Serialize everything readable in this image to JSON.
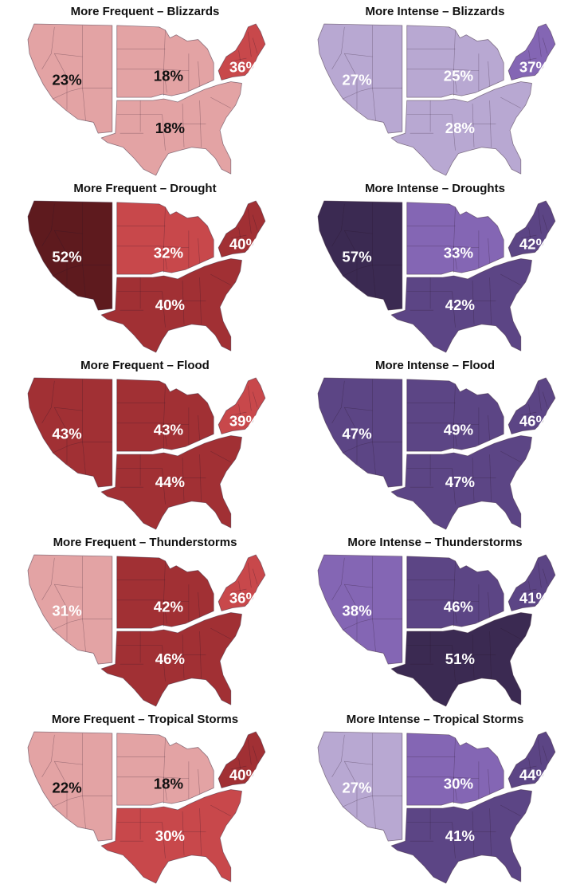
{
  "panels": [
    {
      "title": "More Frequent – Blizzards",
      "theme": "red",
      "regions": [
        {
          "name": "west",
          "value": "23%",
          "color": "#e3a3a4",
          "label_color": "#111111"
        },
        {
          "name": "midwest",
          "value": "18%",
          "color": "#e3a3a4",
          "label_color": "#111111"
        },
        {
          "name": "northeast",
          "value": "36%",
          "color": "#c8484b",
          "label_color": "#ffffff"
        },
        {
          "name": "south",
          "value": "18%",
          "color": "#e3a3a4",
          "label_color": "#111111"
        }
      ]
    },
    {
      "title": "More Intense – Blizzards",
      "theme": "purple",
      "regions": [
        {
          "name": "west",
          "value": "27%",
          "color": "#b8a8d2",
          "label_color": "#ffffff"
        },
        {
          "name": "midwest",
          "value": "25%",
          "color": "#b8a8d2",
          "label_color": "#ffffff"
        },
        {
          "name": "northeast",
          "value": "37%",
          "color": "#8466b4",
          "label_color": "#ffffff"
        },
        {
          "name": "south",
          "value": "28%",
          "color": "#b8a8d2",
          "label_color": "#ffffff"
        }
      ]
    },
    {
      "title": "More Frequent – Drought",
      "theme": "red",
      "regions": [
        {
          "name": "west",
          "value": "52%",
          "color": "#5e1a1e",
          "label_color": "#ffffff"
        },
        {
          "name": "midwest",
          "value": "32%",
          "color": "#c8484b",
          "label_color": "#ffffff"
        },
        {
          "name": "northeast",
          "value": "40%",
          "color": "#a13034",
          "label_color": "#ffffff"
        },
        {
          "name": "south",
          "value": "40%",
          "color": "#a13034",
          "label_color": "#ffffff"
        }
      ]
    },
    {
      "title": "More Intense – Droughts",
      "theme": "purple",
      "regions": [
        {
          "name": "west",
          "value": "57%",
          "color": "#3b2a52",
          "label_color": "#ffffff"
        },
        {
          "name": "midwest",
          "value": "33%",
          "color": "#8466b4",
          "label_color": "#ffffff"
        },
        {
          "name": "northeast",
          "value": "42%",
          "color": "#5c4585",
          "label_color": "#ffffff"
        },
        {
          "name": "south",
          "value": "42%",
          "color": "#5c4585",
          "label_color": "#ffffff"
        }
      ]
    },
    {
      "title": "More Frequent – Flood",
      "theme": "red",
      "regions": [
        {
          "name": "west",
          "value": "43%",
          "color": "#a13034",
          "label_color": "#ffffff"
        },
        {
          "name": "midwest",
          "value": "43%",
          "color": "#a13034",
          "label_color": "#ffffff"
        },
        {
          "name": "northeast",
          "value": "39%",
          "color": "#c8484b",
          "label_color": "#ffffff"
        },
        {
          "name": "south",
          "value": "44%",
          "color": "#a13034",
          "label_color": "#ffffff"
        }
      ]
    },
    {
      "title": "More Intense – Flood",
      "theme": "purple",
      "regions": [
        {
          "name": "west",
          "value": "47%",
          "color": "#5c4585",
          "label_color": "#ffffff"
        },
        {
          "name": "midwest",
          "value": "49%",
          "color": "#5c4585",
          "label_color": "#ffffff"
        },
        {
          "name": "northeast",
          "value": "46%",
          "color": "#5c4585",
          "label_color": "#ffffff"
        },
        {
          "name": "south",
          "value": "47%",
          "color": "#5c4585",
          "label_color": "#ffffff"
        }
      ]
    },
    {
      "title": "More Frequent – Thunderstorms",
      "theme": "red",
      "regions": [
        {
          "name": "west",
          "value": "31%",
          "color": "#e3a3a4",
          "label_color": "#ffffff"
        },
        {
          "name": "midwest",
          "value": "42%",
          "color": "#a13034",
          "label_color": "#ffffff"
        },
        {
          "name": "northeast",
          "value": "36%",
          "color": "#c8484b",
          "label_color": "#ffffff"
        },
        {
          "name": "south",
          "value": "46%",
          "color": "#a13034",
          "label_color": "#ffffff"
        }
      ]
    },
    {
      "title": "More Intense – Thunderstorms",
      "theme": "purple",
      "regions": [
        {
          "name": "west",
          "value": "38%",
          "color": "#8466b4",
          "label_color": "#ffffff"
        },
        {
          "name": "midwest",
          "value": "46%",
          "color": "#5c4585",
          "label_color": "#ffffff"
        },
        {
          "name": "northeast",
          "value": "41%",
          "color": "#5c4585",
          "label_color": "#ffffff"
        },
        {
          "name": "south",
          "value": "51%",
          "color": "#3b2a52",
          "label_color": "#ffffff"
        }
      ]
    },
    {
      "title": "More Frequent – Tropical Storms",
      "theme": "red",
      "regions": [
        {
          "name": "west",
          "value": "22%",
          "color": "#e3a3a4",
          "label_color": "#111111"
        },
        {
          "name": "midwest",
          "value": "18%",
          "color": "#e3a3a4",
          "label_color": "#111111"
        },
        {
          "name": "northeast",
          "value": "40%",
          "color": "#a13034",
          "label_color": "#ffffff"
        },
        {
          "name": "south",
          "value": "30%",
          "color": "#c8484b",
          "label_color": "#ffffff"
        }
      ]
    },
    {
      "title": "More Intense – Tropical Storms",
      "theme": "purple",
      "regions": [
        {
          "name": "west",
          "value": "27%",
          "color": "#b8a8d2",
          "label_color": "#ffffff"
        },
        {
          "name": "midwest",
          "value": "30%",
          "color": "#8466b4",
          "label_color": "#ffffff"
        },
        {
          "name": "northeast",
          "value": "44%",
          "color": "#5c4585",
          "label_color": "#ffffff"
        },
        {
          "name": "south",
          "value": "41%",
          "color": "#5c4585",
          "label_color": "#ffffff"
        }
      ]
    }
  ]
}
